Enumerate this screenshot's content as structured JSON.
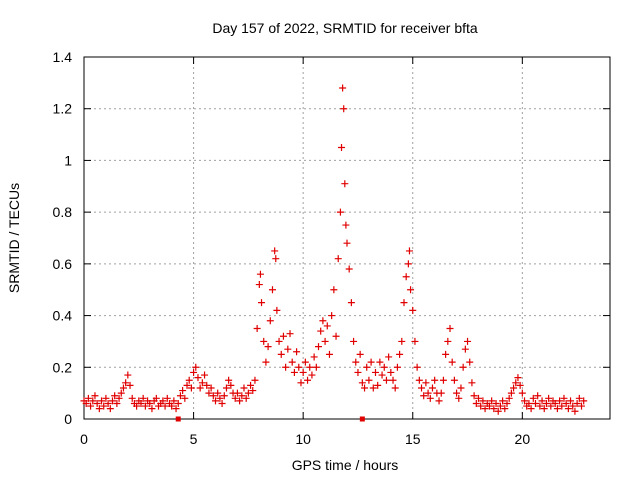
{
  "chart_data": {
    "type": "scatter",
    "title": "Day 157 of 2022, SRMTID for receiver bfta",
    "xlabel": "GPS time / hours",
    "ylabel": "SRMTID / TECUs",
    "xlim": [
      0,
      24
    ],
    "ylim": [
      0,
      1.4
    ],
    "xticks": [
      0,
      5,
      10,
      15,
      20
    ],
    "xtick_labels": [
      "0",
      "5",
      "10",
      "15",
      "20"
    ],
    "yticks": [
      0,
      0.2,
      0.4,
      0.6,
      0.8,
      1,
      1.2,
      1.4
    ],
    "ytick_labels": [
      "0",
      "0.2",
      "0.4",
      "0.6",
      "0.8",
      "1",
      "1.2",
      "1.4"
    ],
    "grid": true,
    "marker": "+",
    "colors": {
      "series": "#e00000",
      "grid": "#a0a0a0",
      "frame": "#000000"
    },
    "series": [
      {
        "name": "SRMTID",
        "points": [
          [
            0.0,
            0.07
          ],
          [
            0.1,
            0.06
          ],
          [
            0.2,
            0.08
          ],
          [
            0.3,
            0.05
          ],
          [
            0.4,
            0.07
          ],
          [
            0.5,
            0.09
          ],
          [
            0.6,
            0.06
          ],
          [
            0.7,
            0.04
          ],
          [
            0.8,
            0.07
          ],
          [
            0.9,
            0.05
          ],
          [
            1.0,
            0.08
          ],
          [
            1.1,
            0.06
          ],
          [
            1.2,
            0.04
          ],
          [
            1.3,
            0.07
          ],
          [
            1.4,
            0.09
          ],
          [
            1.5,
            0.06
          ],
          [
            1.6,
            0.08
          ],
          [
            1.7,
            0.1
          ],
          [
            1.8,
            0.12
          ],
          [
            1.9,
            0.14
          ],
          [
            2.0,
            0.17
          ],
          [
            2.1,
            0.13
          ],
          [
            2.2,
            0.08
          ],
          [
            2.3,
            0.06
          ],
          [
            2.4,
            0.05
          ],
          [
            2.5,
            0.07
          ],
          [
            2.6,
            0.06
          ],
          [
            2.7,
            0.08
          ],
          [
            2.8,
            0.05
          ],
          [
            2.9,
            0.07
          ],
          [
            3.0,
            0.06
          ],
          [
            3.1,
            0.04
          ],
          [
            3.2,
            0.07
          ],
          [
            3.3,
            0.08
          ],
          [
            3.4,
            0.05
          ],
          [
            3.5,
            0.06
          ],
          [
            3.6,
            0.07
          ],
          [
            3.7,
            0.05
          ],
          [
            3.8,
            0.08
          ],
          [
            3.9,
            0.06
          ],
          [
            4.0,
            0.05
          ],
          [
            4.1,
            0.07
          ],
          [
            4.2,
            0.04
          ],
          [
            4.3,
            0.06
          ],
          [
            4.4,
            0.09
          ],
          [
            4.5,
            0.11
          ],
          [
            4.6,
            0.08
          ],
          [
            4.7,
            0.13
          ],
          [
            4.8,
            0.15
          ],
          [
            4.9,
            0.12
          ],
          [
            5.0,
            0.18
          ],
          [
            5.1,
            0.2
          ],
          [
            5.2,
            0.16
          ],
          [
            5.3,
            0.12
          ],
          [
            5.4,
            0.14
          ],
          [
            5.5,
            0.17
          ],
          [
            5.6,
            0.13
          ],
          [
            5.7,
            0.1
          ],
          [
            5.8,
            0.12
          ],
          [
            5.9,
            0.09
          ],
          [
            6.0,
            0.07
          ],
          [
            6.1,
            0.1
          ],
          [
            6.2,
            0.08
          ],
          [
            6.3,
            0.06
          ],
          [
            6.4,
            0.09
          ],
          [
            6.5,
            0.12
          ],
          [
            6.6,
            0.15
          ],
          [
            6.7,
            0.13
          ],
          [
            6.8,
            0.1
          ],
          [
            6.9,
            0.08
          ],
          [
            7.0,
            0.1
          ],
          [
            7.1,
            0.07
          ],
          [
            7.2,
            0.09
          ],
          [
            7.3,
            0.12
          ],
          [
            7.4,
            0.08
          ],
          [
            7.5,
            0.1
          ],
          [
            7.6,
            0.13
          ],
          [
            7.7,
            0.11
          ],
          [
            7.8,
            0.15
          ],
          [
            7.9,
            0.35
          ],
          [
            8.0,
            0.52
          ],
          [
            8.05,
            0.56
          ],
          [
            8.1,
            0.45
          ],
          [
            8.2,
            0.3
          ],
          [
            8.3,
            0.22
          ],
          [
            8.4,
            0.28
          ],
          [
            8.5,
            0.38
          ],
          [
            8.6,
            0.5
          ],
          [
            8.7,
            0.65
          ],
          [
            8.75,
            0.62
          ],
          [
            8.8,
            0.42
          ],
          [
            8.9,
            0.3
          ],
          [
            9.0,
            0.25
          ],
          [
            9.1,
            0.32
          ],
          [
            9.2,
            0.2
          ],
          [
            9.3,
            0.27
          ],
          [
            9.4,
            0.33
          ],
          [
            9.5,
            0.22
          ],
          [
            9.6,
            0.18
          ],
          [
            9.7,
            0.26
          ],
          [
            9.8,
            0.2
          ],
          [
            9.9,
            0.14
          ],
          [
            10.0,
            0.18
          ],
          [
            10.1,
            0.22
          ],
          [
            10.2,
            0.15
          ],
          [
            10.3,
            0.2
          ],
          [
            10.4,
            0.17
          ],
          [
            10.5,
            0.24
          ],
          [
            10.6,
            0.2
          ],
          [
            10.7,
            0.28
          ],
          [
            10.8,
            0.34
          ],
          [
            10.9,
            0.38
          ],
          [
            11.0,
            0.3
          ],
          [
            11.1,
            0.36
          ],
          [
            11.2,
            0.25
          ],
          [
            11.3,
            0.4
          ],
          [
            11.4,
            0.5
          ],
          [
            11.5,
            0.32
          ],
          [
            11.6,
            0.62
          ],
          [
            11.7,
            0.8
          ],
          [
            11.75,
            1.05
          ],
          [
            11.8,
            1.28
          ],
          [
            11.85,
            1.2
          ],
          [
            11.9,
            0.91
          ],
          [
            11.95,
            0.75
          ],
          [
            12.0,
            0.68
          ],
          [
            12.1,
            0.58
          ],
          [
            12.2,
            0.45
          ],
          [
            12.3,
            0.3
          ],
          [
            12.4,
            0.22
          ],
          [
            12.5,
            0.18
          ],
          [
            12.6,
            0.25
          ],
          [
            12.7,
            0.14
          ],
          [
            12.8,
            0.12
          ],
          [
            12.9,
            0.2
          ],
          [
            13.0,
            0.15
          ],
          [
            13.1,
            0.22
          ],
          [
            13.2,
            0.12
          ],
          [
            13.3,
            0.18
          ],
          [
            13.4,
            0.13
          ],
          [
            13.5,
            0.22
          ],
          [
            13.6,
            0.17
          ],
          [
            13.7,
            0.2
          ],
          [
            13.8,
            0.15
          ],
          [
            13.9,
            0.24
          ],
          [
            14.0,
            0.18
          ],
          [
            14.1,
            0.15
          ],
          [
            14.2,
            0.12
          ],
          [
            14.3,
            0.2
          ],
          [
            14.4,
            0.25
          ],
          [
            14.5,
            0.3
          ],
          [
            14.6,
            0.45
          ],
          [
            14.7,
            0.55
          ],
          [
            14.8,
            0.6
          ],
          [
            14.85,
            0.65
          ],
          [
            14.9,
            0.5
          ],
          [
            15.0,
            0.42
          ],
          [
            15.1,
            0.3
          ],
          [
            15.2,
            0.2
          ],
          [
            15.3,
            0.15
          ],
          [
            15.4,
            0.12
          ],
          [
            15.5,
            0.09
          ],
          [
            15.6,
            0.14
          ],
          [
            15.7,
            0.1
          ],
          [
            15.8,
            0.08
          ],
          [
            15.9,
            0.12
          ],
          [
            16.0,
            0.15
          ],
          [
            16.1,
            0.1
          ],
          [
            16.2,
            0.07
          ],
          [
            16.3,
            0.1
          ],
          [
            16.4,
            0.15
          ],
          [
            16.5,
            0.25
          ],
          [
            16.6,
            0.3
          ],
          [
            16.7,
            0.35
          ],
          [
            16.8,
            0.22
          ],
          [
            16.9,
            0.15
          ],
          [
            17.0,
            0.1
          ],
          [
            17.1,
            0.08
          ],
          [
            17.2,
            0.12
          ],
          [
            17.3,
            0.2
          ],
          [
            17.4,
            0.27
          ],
          [
            17.5,
            0.3
          ],
          [
            17.6,
            0.22
          ],
          [
            17.7,
            0.14
          ],
          [
            17.8,
            0.09
          ],
          [
            17.9,
            0.06
          ],
          [
            18.0,
            0.08
          ],
          [
            18.1,
            0.05
          ],
          [
            18.2,
            0.07
          ],
          [
            18.3,
            0.04
          ],
          [
            18.4,
            0.06
          ],
          [
            18.5,
            0.05
          ],
          [
            18.6,
            0.07
          ],
          [
            18.7,
            0.04
          ],
          [
            18.8,
            0.06
          ],
          [
            18.9,
            0.03
          ],
          [
            19.0,
            0.05
          ],
          [
            19.1,
            0.07
          ],
          [
            19.2,
            0.04
          ],
          [
            19.3,
            0.06
          ],
          [
            19.4,
            0.08
          ],
          [
            19.5,
            0.1
          ],
          [
            19.6,
            0.12
          ],
          [
            19.7,
            0.14
          ],
          [
            19.8,
            0.16
          ],
          [
            19.9,
            0.13
          ],
          [
            20.0,
            0.1
          ],
          [
            20.1,
            0.07
          ],
          [
            20.2,
            0.05
          ],
          [
            20.3,
            0.06
          ],
          [
            20.4,
            0.04
          ],
          [
            20.5,
            0.08
          ],
          [
            20.6,
            0.06
          ],
          [
            20.7,
            0.09
          ],
          [
            20.8,
            0.05
          ],
          [
            20.9,
            0.07
          ],
          [
            21.0,
            0.04
          ],
          [
            21.1,
            0.06
          ],
          [
            21.2,
            0.08
          ],
          [
            21.3,
            0.05
          ],
          [
            21.4,
            0.07
          ],
          [
            21.5,
            0.06
          ],
          [
            21.6,
            0.04
          ],
          [
            21.7,
            0.07
          ],
          [
            21.8,
            0.05
          ],
          [
            21.9,
            0.08
          ],
          [
            22.0,
            0.06
          ],
          [
            22.1,
            0.04
          ],
          [
            22.2,
            0.07
          ],
          [
            22.3,
            0.05
          ],
          [
            22.4,
            0.03
          ],
          [
            22.5,
            0.06
          ],
          [
            22.6,
            0.08
          ],
          [
            22.7,
            0.05
          ],
          [
            22.8,
            0.07
          ]
        ]
      }
    ],
    "gap_markers_x": [
      4.3,
      12.7
    ]
  }
}
